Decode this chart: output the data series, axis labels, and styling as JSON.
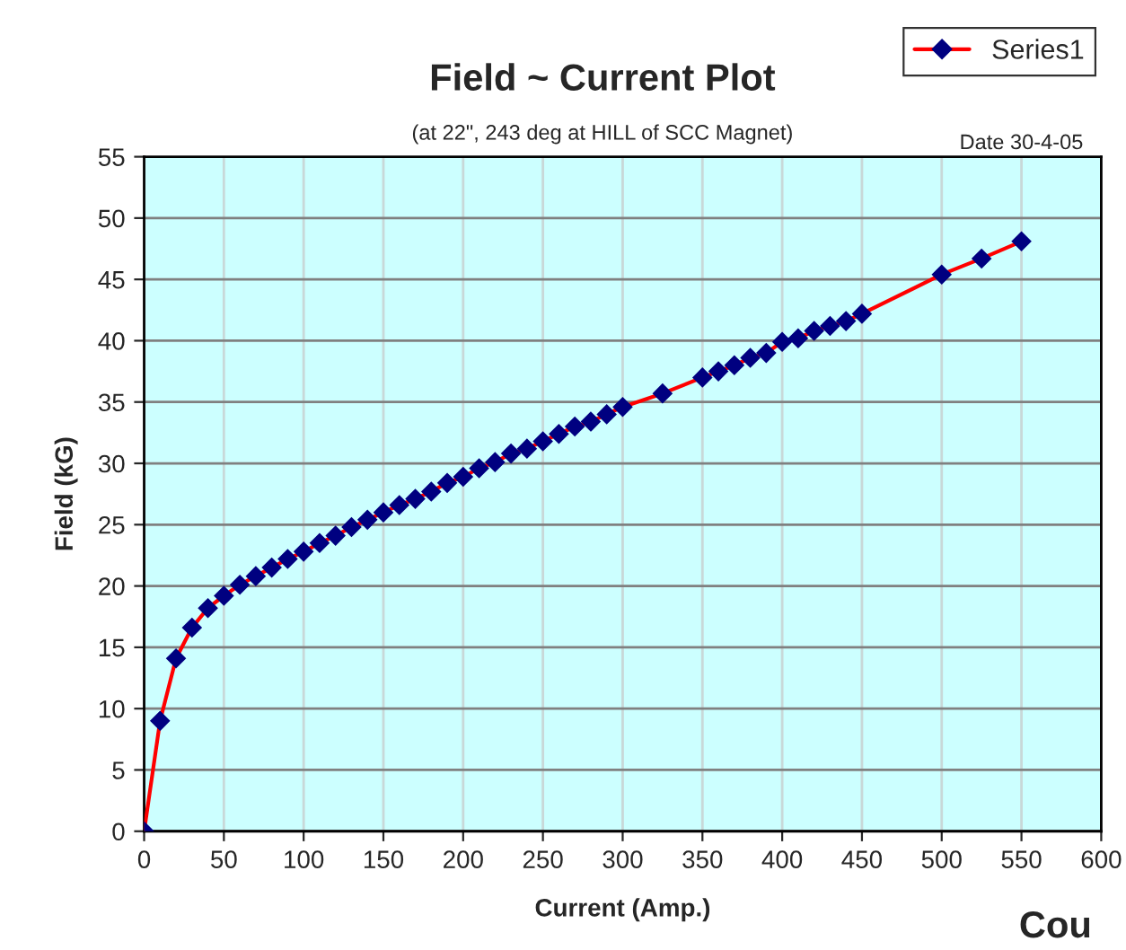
{
  "chart_data": {
    "type": "line",
    "title": "Field ~ Current Plot",
    "subtitle": "(at 22\", 243 deg at HILL of SCC Magnet)",
    "xlabel": "Current (Amp.)",
    "ylabel": "Field (kG)",
    "annotations": [
      "Date 30-4-05",
      "Cou"
    ],
    "x": [
      0,
      10,
      20,
      30,
      40,
      50,
      60,
      70,
      80,
      90,
      100,
      110,
      120,
      130,
      140,
      150,
      160,
      170,
      180,
      190,
      200,
      210,
      220,
      230,
      240,
      250,
      260,
      270,
      280,
      290,
      300,
      325,
      350,
      360,
      370,
      380,
      390,
      400,
      410,
      420,
      430,
      440,
      450,
      500,
      525,
      550
    ],
    "series": [
      {
        "name": "Series1",
        "color": "#ff0000",
        "values": [
          0,
          9.0,
          14.1,
          16.6,
          18.2,
          19.2,
          20.1,
          20.8,
          21.5,
          22.2,
          22.8,
          23.5,
          24.1,
          24.8,
          25.4,
          26.0,
          26.6,
          27.1,
          27.7,
          28.4,
          28.9,
          29.6,
          30.1,
          30.8,
          31.2,
          31.8,
          32.4,
          33.0,
          33.4,
          34.0,
          34.6,
          35.7,
          37.0,
          37.5,
          38.0,
          38.6,
          39.0,
          39.9,
          40.2,
          40.8,
          41.2,
          41.6,
          42.2,
          45.4,
          46.7,
          48.1
        ]
      }
    ],
    "xlim": [
      0,
      600
    ],
    "xticks": [
      0,
      50,
      100,
      150,
      200,
      250,
      300,
      350,
      400,
      450,
      500,
      550,
      600
    ],
    "ylim": [
      0,
      55
    ],
    "yticks": [
      0,
      5,
      10,
      15,
      20,
      25,
      30,
      35,
      40,
      45,
      50,
      55
    ],
    "grid": true,
    "legend": "top right",
    "marker": "diamond",
    "line_style": "solid"
  }
}
